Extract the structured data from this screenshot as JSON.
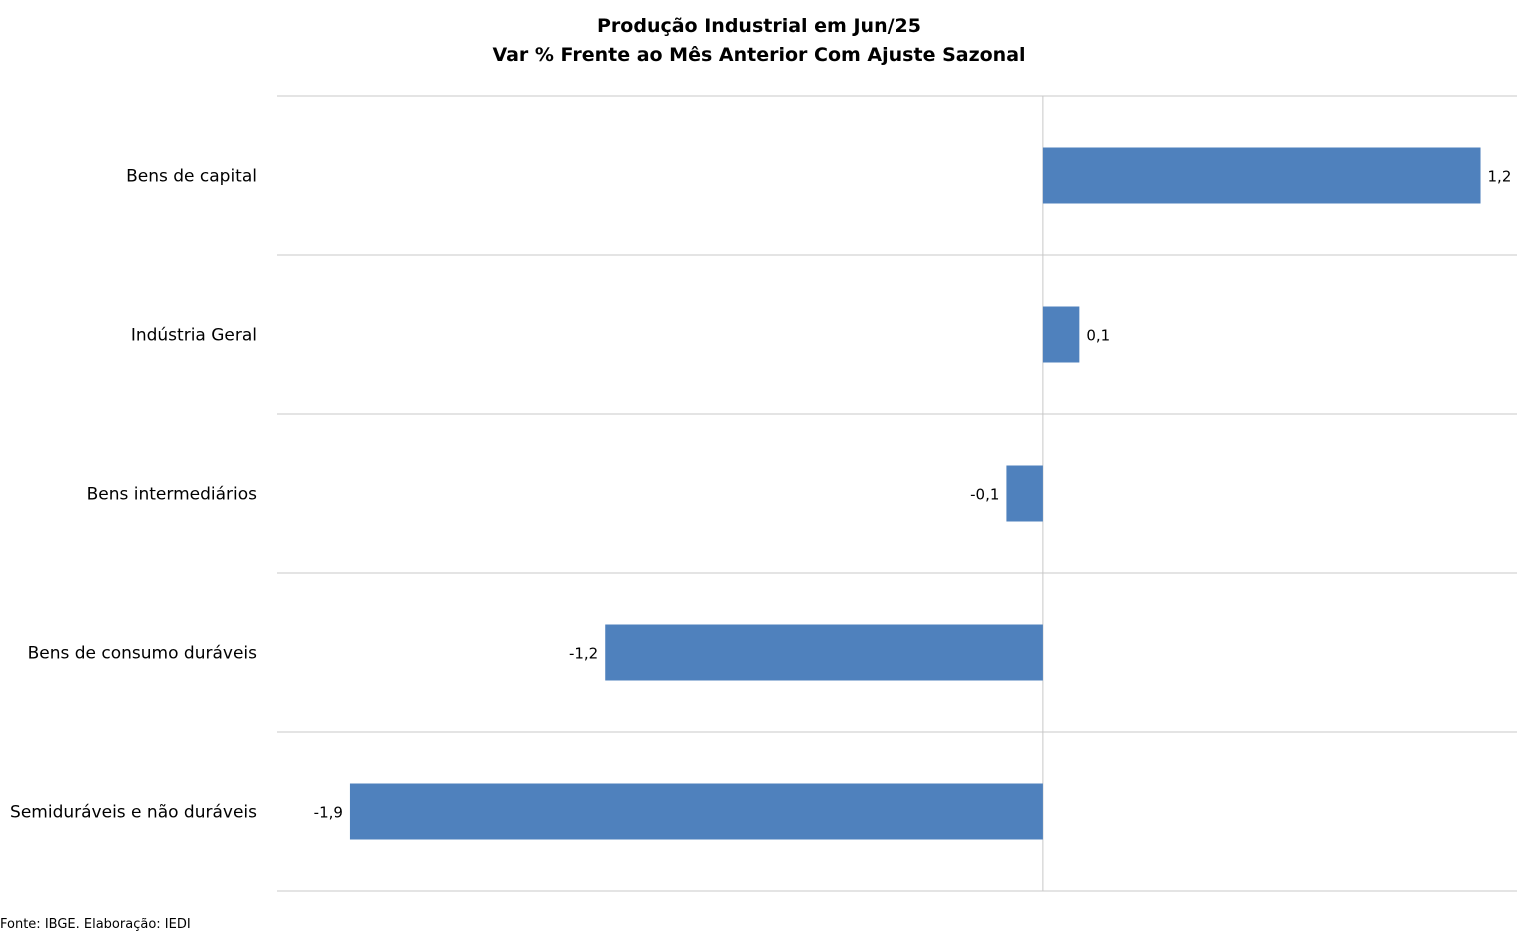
{
  "chart_data": {
    "type": "bar",
    "orientation": "horizontal",
    "title": "Produção Industrial em Jun/25",
    "subtitle": "Var % Frente ao Mês Anterior Com Ajuste Sazonal",
    "categories": [
      "Bens de capital",
      "Indústria Geral",
      "Bens intermediários",
      "Bens de consumo duráveis",
      "Semiduráveis e não duráveis"
    ],
    "values": [
      1.2,
      0.1,
      -0.1,
      -1.2,
      -1.9
    ],
    "data_labels": [
      "1,2",
      "0,1",
      "-0,1",
      "-1,2",
      "-1,9"
    ],
    "xlim": [
      -2.1,
      1.3
    ],
    "bar_color": "#4f81bd",
    "grid": true,
    "legend": "none"
  },
  "footer": {
    "source": "Fonte: IBGE. Elaboração: IEDI"
  }
}
